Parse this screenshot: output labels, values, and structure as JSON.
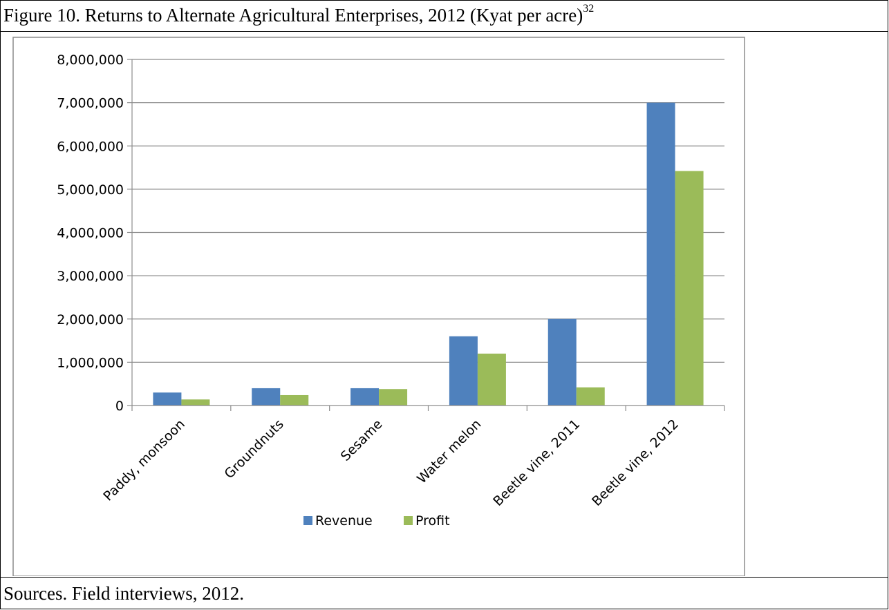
{
  "figure": {
    "title": "Figure 10. Returns to Alternate Agricultural Enterprises, 2012 (Kyat per acre)",
    "footnote_ref": "32",
    "source": "Sources. Field interviews, 2012."
  },
  "chart_data": {
    "type": "bar",
    "categories": [
      "Paddy, monsoon",
      "Groundnuts",
      "Sesame",
      "Water melon",
      "Beetle vine, 2011",
      "Beetle vine, 2012"
    ],
    "series": [
      {
        "name": "Revenue",
        "color": "#4f81bd",
        "values": [
          300000,
          400000,
          400000,
          1600000,
          2000000,
          7000000
        ]
      },
      {
        "name": "Profit",
        "color": "#9bbb59",
        "values": [
          140000,
          240000,
          380000,
          1200000,
          420000,
          5420000
        ]
      }
    ],
    "ylim": [
      0,
      8000000
    ],
    "yticks": [
      0,
      1000000,
      2000000,
      3000000,
      4000000,
      5000000,
      6000000,
      7000000,
      8000000
    ],
    "ytick_labels": [
      "0",
      "1,000,000",
      "2,000,000",
      "3,000,000",
      "4,000,000",
      "5,000,000",
      "6,000,000",
      "7,000,000",
      "8,000,000"
    ],
    "grid": true,
    "legend": "bottom",
    "xlabel": "",
    "ylabel": "",
    "title": ""
  }
}
